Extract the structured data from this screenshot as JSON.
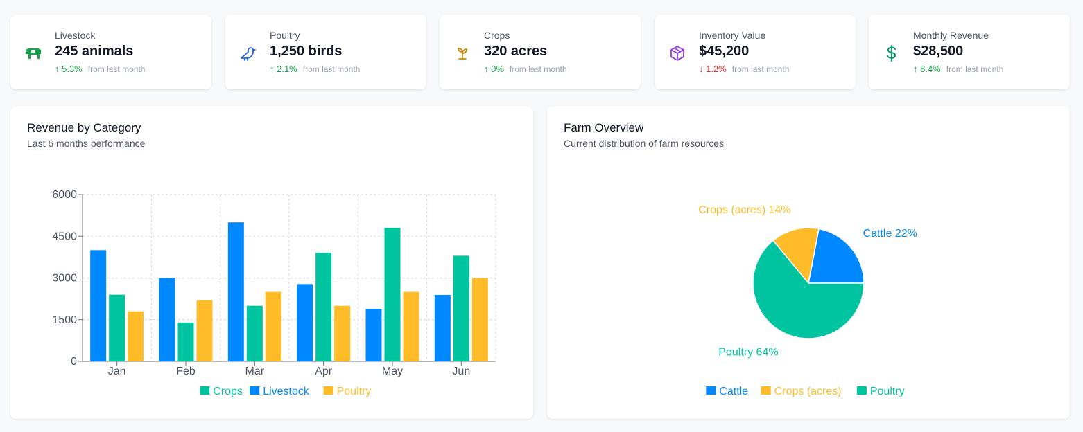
{
  "stats": [
    {
      "label": "Livestock",
      "value": "245 animals",
      "change": "↑ 5.3%",
      "direction": "up",
      "from": "from last month",
      "icon": "cow-icon",
      "icon_color": "#16a34a"
    },
    {
      "label": "Poultry",
      "value": "1,250 birds",
      "change": "↑ 2.1%",
      "direction": "up",
      "from": "from last month",
      "icon": "bird-icon",
      "icon_color": "#2563eb"
    },
    {
      "label": "Crops",
      "value": "320 acres",
      "change": "↑ 0%",
      "direction": "up",
      "from": "from last month",
      "icon": "sprout-icon",
      "icon_color": "#ca8a04"
    },
    {
      "label": "Inventory Value",
      "value": "$45,200",
      "change": "↓ 1.2%",
      "direction": "down",
      "from": "from last month",
      "icon": "package-icon",
      "icon_color": "#9333ea"
    },
    {
      "label": "Monthly Revenue",
      "value": "$28,500",
      "change": "↑ 8.4%",
      "direction": "up",
      "from": "from last month",
      "icon": "dollar-icon",
      "icon_color": "#059669"
    }
  ],
  "revenue_panel": {
    "title": "Revenue by Category",
    "subtitle": "Last 6 months performance"
  },
  "overview_panel": {
    "title": "Farm Overview",
    "subtitle": "Current distribution of farm resources"
  },
  "colors": {
    "crops": "#00c49f",
    "livestock": "#0088fe",
    "poultry": "#ffbb28"
  },
  "chart_data": [
    {
      "type": "bar",
      "categories": [
        "Jan",
        "Feb",
        "Mar",
        "Apr",
        "May",
        "Jun"
      ],
      "series": [
        {
          "name": "Livestock",
          "color": "#0088fe",
          "values": [
            4000,
            3000,
            5000,
            2780,
            1890,
            2390
          ]
        },
        {
          "name": "Crops",
          "color": "#00c49f",
          "values": [
            2400,
            1398,
            2000,
            3908,
            4800,
            3800
          ]
        },
        {
          "name": "Poultry",
          "color": "#ffbb28",
          "values": [
            1800,
            2200,
            2500,
            2000,
            2500,
            3000
          ]
        }
      ],
      "legend": [
        {
          "name": "Crops",
          "color": "#00c49f"
        },
        {
          "name": "Livestock",
          "color": "#0088fe"
        },
        {
          "name": "Poultry",
          "color": "#ffbb28"
        }
      ],
      "yticks": [
        0,
        1500,
        3000,
        4500,
        6000
      ],
      "ylim": [
        0,
        6000
      ],
      "grid": true,
      "legend_position": "bottom"
    },
    {
      "type": "pie",
      "slices": [
        {
          "name": "Cattle",
          "value": 22,
          "label": "Cattle 22%",
          "color": "#0088fe"
        },
        {
          "name": "Crops (acres)",
          "value": 14,
          "label": "Crops (acres) 14%",
          "color": "#ffbb28"
        },
        {
          "name": "Poultry",
          "value": 64,
          "label": "Poultry 64%",
          "color": "#00c49f"
        }
      ],
      "legend": [
        {
          "name": "Cattle",
          "color": "#0088fe"
        },
        {
          "name": "Crops (acres)",
          "color": "#ffbb28"
        },
        {
          "name": "Poultry",
          "color": "#00c49f"
        }
      ],
      "legend_position": "bottom"
    }
  ]
}
